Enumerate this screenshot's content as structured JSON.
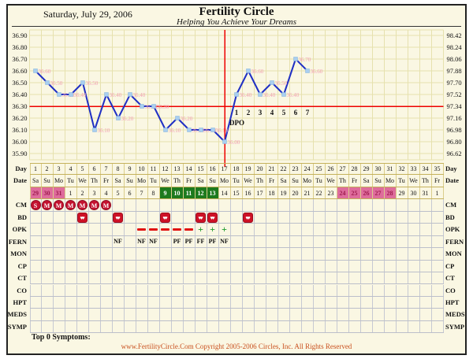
{
  "header": {
    "date": "Saturday, July 29, 2006",
    "title": "Fertility Circle",
    "tagline": "Helping You Achieve Your Dreams"
  },
  "chart_data": {
    "type": "line",
    "title": "Basal body temperature chart (Celsius left axis, Fahrenheit right axis)",
    "x_label": "Cycle Day",
    "x": [
      1,
      2,
      3,
      4,
      5,
      6,
      7,
      8,
      9,
      10,
      11,
      12,
      13,
      14,
      15,
      16,
      17,
      18,
      19,
      20,
      21,
      22,
      23,
      24
    ],
    "series": [
      {
        "name": "BBT (°C)",
        "values": [
          36.6,
          36.5,
          36.4,
          36.4,
          36.5,
          36.1,
          36.4,
          36.2,
          36.4,
          36.3,
          36.3,
          36.1,
          36.2,
          36.1,
          36.1,
          36.1,
          36.0,
          36.4,
          36.6,
          36.4,
          36.5,
          36.4,
          36.7,
          36.6
        ]
      }
    ],
    "left_axis_labels": [
      "36.90",
      "36.80",
      "36.70",
      "36.60",
      "36.50",
      "36.40",
      "36.30",
      "36.20",
      "36.10",
      "36.00",
      "35.90"
    ],
    "right_axis_labels": [
      "98.42",
      "98.24",
      "98.06",
      "97.88",
      "97.70",
      "97.52",
      "97.34",
      "97.16",
      "96.98",
      "96.80",
      "96.62"
    ],
    "ylim_celsius": [
      35.9,
      36.9
    ],
    "coverline_celsius": 36.3,
    "coverline_fahrenheit": 97.34,
    "ovulation_day": 17,
    "dpo": {
      "label": "DPO",
      "numbers": [
        "1",
        "2",
        "3",
        "4",
        "5",
        "6",
        "7"
      ],
      "start_day": 18
    },
    "grid": "on",
    "x_days_total": 35,
    "line_color": "#1F2FC4",
    "marker_color": "#A9CEF0",
    "point_label_color": "#F2A0B4",
    "reference_line_color": "#EE0000"
  },
  "rows": {
    "day": {
      "label": "Day",
      "values": [
        "1",
        "2",
        "3",
        "4",
        "5",
        "6",
        "7",
        "8",
        "9",
        "10",
        "11",
        "12",
        "13",
        "14",
        "15",
        "16",
        "17",
        "18",
        "19",
        "20",
        "21",
        "22",
        "23",
        "24",
        "25",
        "26",
        "27",
        "28",
        "29",
        "30",
        "31",
        "32",
        "33",
        "34",
        "35"
      ]
    },
    "weekday": {
      "label": "Date",
      "values": [
        "Sa",
        "Su",
        "Mo",
        "Tu",
        "We",
        "Th",
        "Fr",
        "Sa",
        "Su",
        "Mo",
        "Tu",
        "We",
        "Th",
        "Fr",
        "Sa",
        "Su",
        "Mo",
        "Tu",
        "We",
        "Th",
        "Fr",
        "Sa",
        "Su",
        "Mo",
        "Tu",
        "We",
        "Th",
        "Fr",
        "Sa",
        "Su",
        "Mo",
        "Tu",
        "We",
        "Th",
        "Fr"
      ]
    },
    "dates": {
      "label": "",
      "values": [
        "29",
        "30",
        "31",
        "1",
        "2",
        "3",
        "4",
        "5",
        "6",
        "7",
        "8",
        "9",
        "10",
        "11",
        "12",
        "13",
        "14",
        "15",
        "16",
        "17",
        "18",
        "19",
        "20",
        "21",
        "22",
        "23",
        "24",
        "25",
        "26",
        "27",
        "28",
        "29",
        "30",
        "31",
        "1"
      ],
      "pink_days": [
        1,
        2,
        3,
        27,
        28,
        29,
        30,
        31
      ],
      "green_days": [
        12,
        13,
        14,
        15,
        16
      ],
      "pink_color": "#DE6C9C",
      "green_color": "#1E7A1E"
    },
    "cm": {
      "label": "CM",
      "entries": [
        {
          "day": 1,
          "code": "S"
        },
        {
          "day": 2,
          "code": "M"
        },
        {
          "day": 3,
          "code": "M"
        },
        {
          "day": 4,
          "code": "M"
        },
        {
          "day": 5,
          "code": "M"
        },
        {
          "day": 6,
          "code": "M"
        },
        {
          "day": 7,
          "code": "M"
        }
      ],
      "badge_color": "#C41230"
    },
    "bd": {
      "label": "BD",
      "days": [
        5,
        8,
        12,
        15,
        16,
        19
      ],
      "icon": "hearts-couple"
    },
    "opk": {
      "label": "OPK",
      "negative_days": [
        10,
        11,
        12,
        13,
        14
      ],
      "positive_days": [
        15,
        16,
        17
      ],
      "negative_symbol": "dash",
      "positive_symbol": "plus",
      "negative_color": "#E01010",
      "positive_color": "#1F9E2E"
    },
    "fern": {
      "label": "FERN",
      "entries": [
        {
          "day": 8,
          "value": "NF"
        },
        {
          "day": 10,
          "value": "NF"
        },
        {
          "day": 11,
          "value": "NF"
        },
        {
          "day": 13,
          "value": "PF"
        },
        {
          "day": 14,
          "value": "PF"
        },
        {
          "day": 15,
          "value": "FF"
        },
        {
          "day": 16,
          "value": "PF"
        },
        {
          "day": 17,
          "value": "NF"
        }
      ]
    },
    "empty_rows": [
      "MON",
      "CP",
      "CT",
      "CO",
      "HPT",
      "MEDS",
      "SYMP"
    ]
  },
  "bottom": {
    "symptoms_label": "Top 0 Symptoms:",
    "footer": "www.FertilityCircle.Com Copyright 2005-2006 Circles, Inc. All Rights Reserved"
  }
}
